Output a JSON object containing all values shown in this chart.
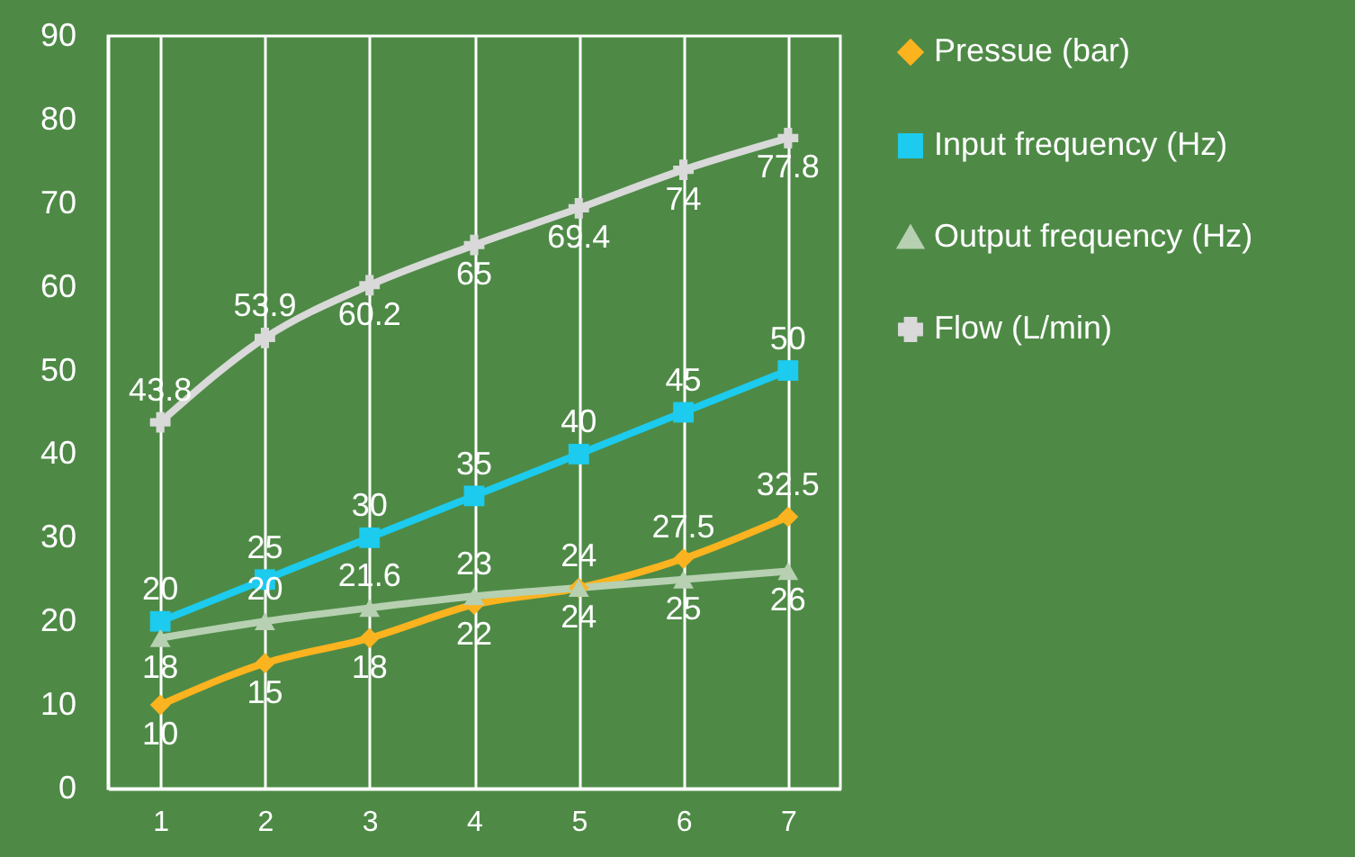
{
  "chart_data": {
    "type": "line",
    "categories": [
      "1",
      "2",
      "3",
      "4",
      "5",
      "6",
      "7"
    ],
    "series": [
      {
        "name": "Pressue (bar)",
        "color": "#fbb31f",
        "marker": "diamond",
        "values": [
          10,
          15,
          18,
          22,
          24,
          27.5,
          32.5
        ]
      },
      {
        "name": "Input frequency (Hz)",
        "color": "#1ccbee",
        "marker": "square",
        "values": [
          20,
          25,
          30,
          35,
          40,
          45,
          50
        ]
      },
      {
        "name": "Output frequency (Hz)",
        "color": "#b6d0b1",
        "marker": "triangle",
        "values": [
          18,
          20,
          21.6,
          23,
          24,
          25,
          26
        ]
      },
      {
        "name": "Flow (L/min)",
        "color": "#d9d9d9",
        "marker": "cross",
        "values": [
          43.8,
          53.9,
          60.2,
          65,
          69.4,
          74,
          77.8
        ]
      }
    ],
    "ylim": [
      0,
      90
    ],
    "yticks": [
      0,
      10,
      20,
      30,
      40,
      50,
      60,
      70,
      80,
      90
    ],
    "grid": "x",
    "legend": "right",
    "data_labels": true,
    "line_style": "solid"
  }
}
